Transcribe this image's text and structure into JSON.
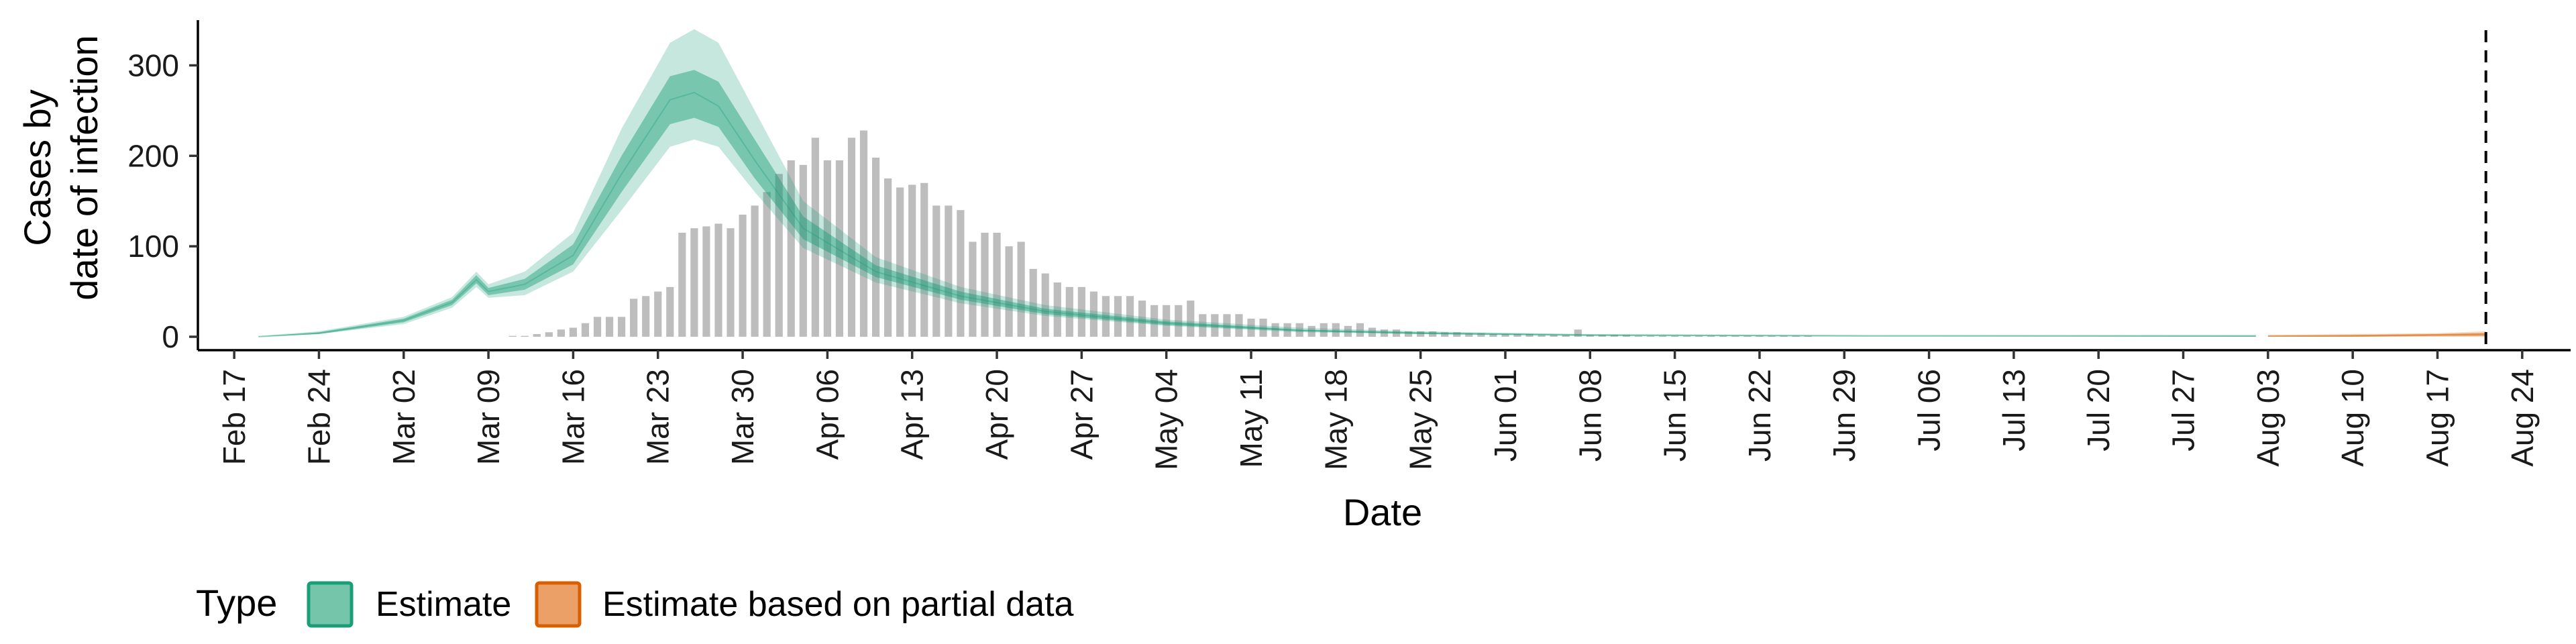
{
  "chart_data": {
    "type": "bar",
    "title": "",
    "xlabel": "Date",
    "ylabel_lines": [
      "Cases by",
      "date of infection"
    ],
    "ylim": [
      0,
      350
    ],
    "yticks": [
      0,
      100,
      200,
      300
    ],
    "xlim": [
      "2020-02-14",
      "2020-08-28"
    ],
    "xtick_dates": [
      "2020-02-17",
      "2020-02-24",
      "2020-03-02",
      "2020-03-09",
      "2020-03-16",
      "2020-03-23",
      "2020-03-30",
      "2020-04-06",
      "2020-04-13",
      "2020-04-20",
      "2020-04-27",
      "2020-05-04",
      "2020-05-11",
      "2020-05-18",
      "2020-05-25",
      "2020-06-01",
      "2020-06-08",
      "2020-06-15",
      "2020-06-22",
      "2020-06-29",
      "2020-07-06",
      "2020-07-13",
      "2020-07-20",
      "2020-07-27",
      "2020-08-03",
      "2020-08-10",
      "2020-08-17",
      "2020-08-24"
    ],
    "xtick_labels": [
      "Feb 17",
      "Feb 24",
      "Mar 02",
      "Mar 09",
      "Mar 16",
      "Mar 23",
      "Mar 30",
      "Apr 06",
      "Apr 13",
      "Apr 20",
      "Apr 27",
      "May 04",
      "May 11",
      "May 18",
      "May 25",
      "Jun 01",
      "Jun 08",
      "Jun 15",
      "Jun 22",
      "Jun 29",
      "Jul 06",
      "Jul 13",
      "Jul 20",
      "Jul 27",
      "Aug 03",
      "Aug 10",
      "Aug 17",
      "Aug 24"
    ],
    "reference_line_date": "2020-08-21",
    "observed_cases": {
      "start_date": "2020-03-11",
      "values": [
        1,
        1,
        3,
        5,
        8,
        10,
        15,
        22,
        22,
        22,
        42,
        45,
        50,
        55,
        115,
        120,
        122,
        125,
        120,
        135,
        145,
        160,
        180,
        195,
        190,
        220,
        195,
        195,
        220,
        228,
        198,
        175,
        165,
        168,
        170,
        145,
        145,
        140,
        105,
        115,
        115,
        100,
        105,
        75,
        70,
        60,
        55,
        55,
        50,
        45,
        45,
        45,
        40,
        35,
        35,
        35,
        40,
        25,
        25,
        25,
        25,
        20,
        20,
        15,
        15,
        15,
        12,
        15,
        15,
        12,
        15,
        10,
        8,
        8,
        6,
        6,
        6,
        5,
        5,
        4,
        4,
        3,
        3,
        3,
        3,
        2,
        2,
        2,
        8,
        2,
        2,
        2,
        2,
        1,
        1,
        1,
        1,
        1,
        1,
        1,
        1,
        1,
        1,
        1,
        1,
        1,
        1,
        1
      ]
    },
    "series": [
      {
        "name": "Estimate",
        "color": "#1b9e77",
        "points": [
          {
            "date": "2020-02-19",
            "median": 0,
            "lo90": 0,
            "hi90": 1,
            "lo50": 0,
            "hi50": 0
          },
          {
            "date": "2020-02-24",
            "median": 4,
            "lo90": 3,
            "hi90": 6,
            "lo50": 3,
            "hi50": 5
          },
          {
            "date": "2020-03-02",
            "median": 18,
            "lo90": 14,
            "hi90": 22,
            "lo50": 16,
            "hi50": 20
          },
          {
            "date": "2020-03-06",
            "median": 38,
            "lo90": 32,
            "hi90": 44,
            "lo50": 35,
            "hi50": 41
          },
          {
            "date": "2020-03-08",
            "median": 63,
            "lo90": 55,
            "hi90": 72,
            "lo50": 59,
            "hi50": 68
          },
          {
            "date": "2020-03-09",
            "median": 50,
            "lo90": 43,
            "hi90": 58,
            "lo50": 46,
            "hi50": 54
          },
          {
            "date": "2020-03-12",
            "median": 58,
            "lo90": 46,
            "hi90": 72,
            "lo50": 52,
            "hi50": 64
          },
          {
            "date": "2020-03-16",
            "median": 90,
            "lo90": 72,
            "hi90": 115,
            "lo50": 80,
            "hi50": 102
          },
          {
            "date": "2020-03-20",
            "median": 180,
            "lo90": 140,
            "hi90": 230,
            "lo50": 160,
            "hi50": 200
          },
          {
            "date": "2020-03-24",
            "median": 262,
            "lo90": 210,
            "hi90": 325,
            "lo50": 235,
            "hi50": 288
          },
          {
            "date": "2020-03-26",
            "median": 270,
            "lo90": 218,
            "hi90": 340,
            "lo50": 242,
            "hi50": 295
          },
          {
            "date": "2020-03-28",
            "median": 255,
            "lo90": 210,
            "hi90": 325,
            "lo50": 232,
            "hi50": 282
          },
          {
            "date": "2020-03-31",
            "median": 195,
            "lo90": 160,
            "hi90": 250,
            "lo50": 175,
            "hi50": 218
          },
          {
            "date": "2020-04-04",
            "median": 120,
            "lo90": 98,
            "hi90": 150,
            "lo50": 108,
            "hi50": 133
          },
          {
            "date": "2020-04-10",
            "median": 72,
            "lo90": 60,
            "hi90": 88,
            "lo50": 66,
            "hi50": 79
          },
          {
            "date": "2020-04-17",
            "median": 45,
            "lo90": 37,
            "hi90": 55,
            "lo50": 41,
            "hi50": 50
          },
          {
            "date": "2020-04-24",
            "median": 28,
            "lo90": 23,
            "hi90": 35,
            "lo50": 25,
            "hi50": 31
          },
          {
            "date": "2020-05-04",
            "median": 15,
            "lo90": 12,
            "hi90": 19,
            "lo50": 13,
            "hi50": 17
          },
          {
            "date": "2020-05-15",
            "median": 7,
            "lo90": 5,
            "hi90": 10,
            "lo50": 6,
            "hi50": 8
          },
          {
            "date": "2020-05-25",
            "median": 4,
            "lo90": 3,
            "hi90": 6,
            "lo50": 3,
            "hi50": 5
          },
          {
            "date": "2020-06-08",
            "median": 2,
            "lo90": 1,
            "hi90": 3,
            "lo50": 1,
            "hi50": 2
          },
          {
            "date": "2020-07-01",
            "median": 1,
            "lo90": 0,
            "hi90": 2,
            "lo50": 1,
            "hi50": 1
          },
          {
            "date": "2020-08-02",
            "median": 1,
            "lo90": 0,
            "hi90": 2,
            "lo50": 0,
            "hi50": 1
          }
        ]
      },
      {
        "name": "Estimate based on partial data",
        "color": "#d95f02",
        "points": [
          {
            "date": "2020-08-03",
            "median": 1,
            "lo90": 0,
            "hi90": 2,
            "lo50": 0,
            "hi50": 1
          },
          {
            "date": "2020-08-10",
            "median": 1,
            "lo90": 0,
            "hi90": 3,
            "lo50": 0,
            "hi50": 2
          },
          {
            "date": "2020-08-17",
            "median": 2,
            "lo90": 0,
            "hi90": 4,
            "lo50": 1,
            "hi50": 3
          },
          {
            "date": "2020-08-21",
            "median": 3,
            "lo90": 0,
            "hi90": 6,
            "lo50": 1,
            "hi50": 4
          }
        ]
      }
    ],
    "legend": {
      "title": "Type",
      "position": "bottom-left",
      "items": [
        {
          "label": "Estimate",
          "fill": "#74c5a9",
          "stroke": "#1b9e77"
        },
        {
          "label": "Estimate based on partial data",
          "fill": "#eba068",
          "stroke": "#d95f02"
        }
      ]
    },
    "grid": false
  }
}
